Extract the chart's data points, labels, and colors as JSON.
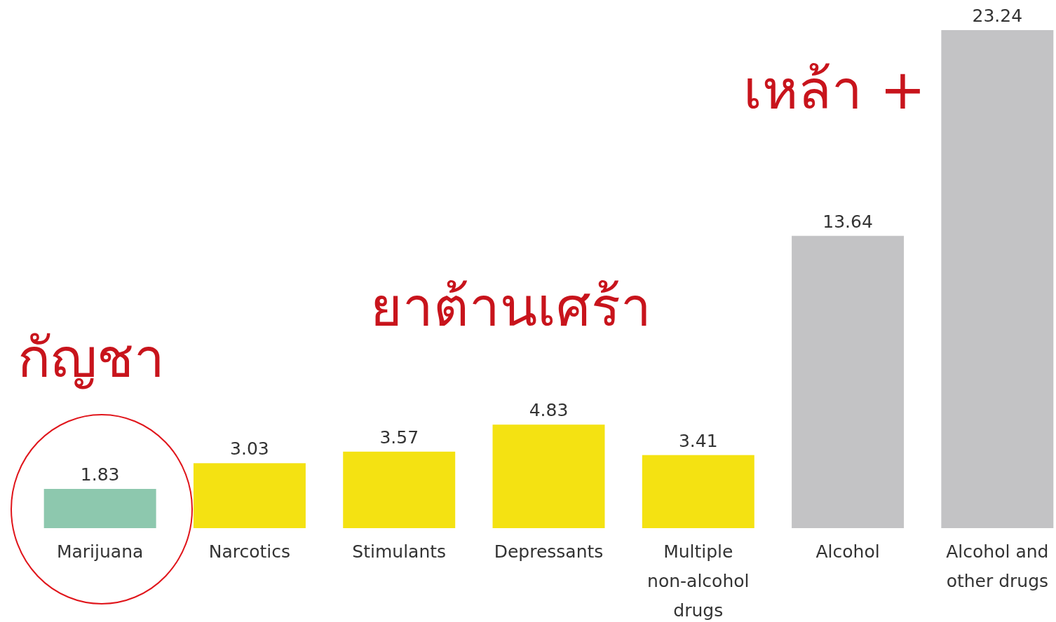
{
  "chart_data": {
    "type": "bar",
    "categories": [
      "Marijuana",
      "Narcotics",
      "Stimulants",
      "Depressants",
      "Multiple non-alcohol drugs",
      "Alcohol",
      "Alcohol and other drugs"
    ],
    "values": [
      1.83,
      3.03,
      3.57,
      4.83,
      3.41,
      13.64,
      23.24
    ],
    "colors": [
      "#8dc8ae",
      "#f4e212",
      "#f4e212",
      "#f4e212",
      "#f4e212",
      "#c3c3c5",
      "#c3c3c5"
    ],
    "data_labels": true,
    "annotations": [
      "กัญชา",
      "ยาต้านเศร้า",
      "เหล้า +"
    ]
  }
}
